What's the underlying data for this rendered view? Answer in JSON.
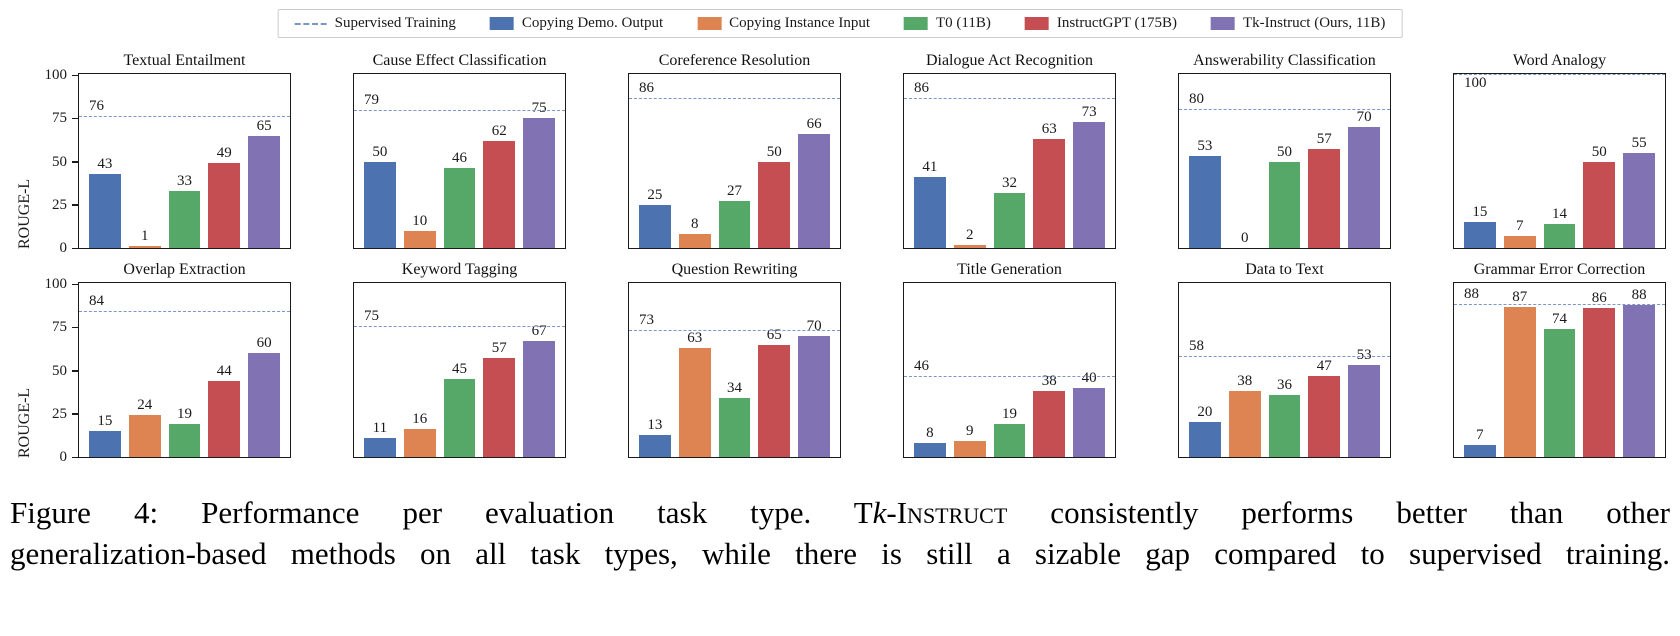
{
  "legend": {
    "items": [
      {
        "label": "Supervised Training",
        "swatch": "dashed-line",
        "color": "#7b96c9"
      },
      {
        "label": "Copying Demo. Output",
        "swatch": "box",
        "color": "#4C72B0"
      },
      {
        "label": "Copying Instance Input",
        "swatch": "box",
        "color": "#DD8452"
      },
      {
        "label": "T0 (11B)",
        "swatch": "box",
        "color": "#55A868"
      },
      {
        "label": "InstructGPT (175B)",
        "swatch": "box",
        "color": "#C44E52"
      },
      {
        "label": "Tk-Instruct (Ours, 11B)",
        "swatch": "box",
        "color": "#8172B3"
      }
    ]
  },
  "axis": {
    "ylabel": "ROUGE-L",
    "yticks": [
      0,
      25,
      50,
      75,
      100
    ],
    "ylim": [
      0,
      100
    ]
  },
  "chart_data": {
    "type": "bar",
    "layout": "2 rows x 6 columns of subplots, shared y-axis label on first column",
    "series": [
      "Copying Demo. Output",
      "Copying Instance Input",
      "T0 (11B)",
      "InstructGPT (175B)",
      "Tk-Instruct (Ours, 11B)"
    ],
    "series_colors": [
      "#4C72B0",
      "#DD8452",
      "#55A868",
      "#C44E52",
      "#8172B3"
    ],
    "supervised_series": "Supervised Training",
    "supervised_color": "#7b96c9",
    "ylabel": "ROUGE-L",
    "ylim": [
      0,
      100
    ],
    "subplots": [
      {
        "title": "Textual Entailment",
        "supervised": 76,
        "values": [
          43,
          1,
          33,
          49,
          65
        ]
      },
      {
        "title": "Cause Effect Classification",
        "supervised": 79,
        "values": [
          50,
          10,
          46,
          62,
          75
        ]
      },
      {
        "title": "Coreference Resolution",
        "supervised": 86,
        "values": [
          25,
          8,
          27,
          50,
          66
        ]
      },
      {
        "title": "Dialogue Act Recognition",
        "supervised": 86,
        "values": [
          41,
          2,
          32,
          63,
          73
        ]
      },
      {
        "title": "Answerability Classification",
        "supervised": 80,
        "values": [
          53,
          0,
          50,
          57,
          70
        ]
      },
      {
        "title": "Word Analogy",
        "supervised": 100,
        "values": [
          15,
          7,
          14,
          50,
          55
        ]
      },
      {
        "title": "Overlap Extraction",
        "supervised": 84,
        "values": [
          15,
          24,
          19,
          44,
          60
        ]
      },
      {
        "title": "Keyword Tagging",
        "supervised": 75,
        "values": [
          11,
          16,
          45,
          57,
          67
        ]
      },
      {
        "title": "Question Rewriting",
        "supervised": 73,
        "values": [
          13,
          63,
          34,
          65,
          70
        ]
      },
      {
        "title": "Title Generation",
        "supervised": 46,
        "values": [
          8,
          9,
          19,
          38,
          40
        ]
      },
      {
        "title": "Data to Text",
        "supervised": 58,
        "values": [
          20,
          38,
          36,
          47,
          53
        ]
      },
      {
        "title": "Grammar Error Correction",
        "supervised": 88,
        "values": [
          7,
          87,
          74,
          86,
          88
        ]
      }
    ]
  },
  "caption": {
    "line1_start": "Figure 4:  Performance per evaluation task type.  ",
    "model_t": "T",
    "model_k": "k",
    "model_rest": "-Instruct",
    "line1_end": " consistently performs better than other",
    "line2": "generalization-based methods on all task types, while there is still a sizable gap compared to supervised training."
  }
}
